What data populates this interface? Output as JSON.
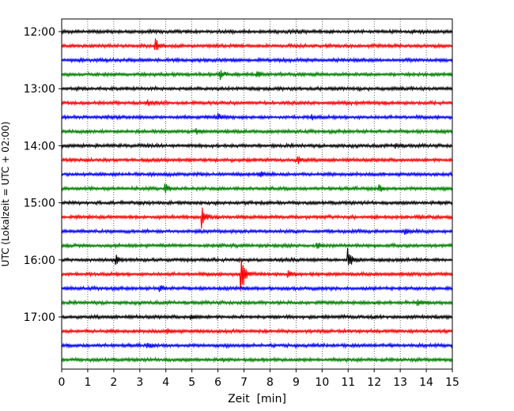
{
  "chart_data": {
    "type": "line",
    "title": "",
    "xlabel": "Zeit  [min]",
    "ylabel": "UTC (Lokalzeit = UTC + 02:00)",
    "xlim": [
      0,
      15
    ],
    "x_ticks": [
      "0",
      "1",
      "2",
      "3",
      "4",
      "5",
      "6",
      "7",
      "8",
      "9",
      "10",
      "11",
      "12",
      "13",
      "14",
      "15"
    ],
    "y_tick_labels": [
      "12:00",
      "13:00",
      "14:00",
      "15:00",
      "16:00",
      "17:00"
    ],
    "grid": "vertical dotted lines at each minute",
    "trace_colors": [
      "#000000",
      "#ff0000",
      "#0000ff",
      "#008000"
    ],
    "series": [
      {
        "start": "12:00",
        "color": "#000000",
        "events": []
      },
      {
        "start": "12:15",
        "color": "#ff0000",
        "events": [
          {
            "t": 3.6,
            "amp": 10
          }
        ]
      },
      {
        "start": "12:30",
        "color": "#0000ff",
        "events": []
      },
      {
        "start": "12:45",
        "color": "#008000",
        "events": [
          {
            "t": 6.1,
            "amp": 5
          },
          {
            "t": 7.5,
            "amp": 4
          }
        ]
      },
      {
        "start": "13:00",
        "color": "#000000",
        "events": []
      },
      {
        "start": "13:15",
        "color": "#ff0000",
        "events": [
          {
            "t": 3.3,
            "amp": 3
          }
        ]
      },
      {
        "start": "13:30",
        "color": "#0000ff",
        "events": [
          {
            "t": 6.0,
            "amp": 4
          },
          {
            "t": 9.6,
            "amp": 3
          }
        ]
      },
      {
        "start": "13:45",
        "color": "#008000",
        "events": [
          {
            "t": 5.2,
            "amp": 3
          }
        ]
      },
      {
        "start": "14:00",
        "color": "#000000",
        "events": [
          {
            "t": 12.8,
            "amp": 3
          }
        ]
      },
      {
        "start": "14:15",
        "color": "#ff0000",
        "events": [
          {
            "t": 9.1,
            "amp": 4
          }
        ]
      },
      {
        "start": "14:30",
        "color": "#0000ff",
        "events": [
          {
            "t": 7.6,
            "amp": 3
          }
        ]
      },
      {
        "start": "14:45",
        "color": "#008000",
        "events": [
          {
            "t": 4.0,
            "amp": 5
          },
          {
            "t": 12.2,
            "amp": 4
          }
        ]
      },
      {
        "start": "15:00",
        "color": "#000000",
        "events": []
      },
      {
        "start": "15:15",
        "color": "#ff0000",
        "events": [
          {
            "t": 5.4,
            "amp": 13
          }
        ]
      },
      {
        "start": "15:30",
        "color": "#0000ff",
        "events": [
          {
            "t": 13.2,
            "amp": 3
          }
        ]
      },
      {
        "start": "15:45",
        "color": "#008000",
        "events": [
          {
            "t": 9.8,
            "amp": 4
          }
        ]
      },
      {
        "start": "16:00",
        "color": "#000000",
        "events": [
          {
            "t": 2.1,
            "amp": 5
          },
          {
            "t": 11.0,
            "amp": 14
          }
        ]
      },
      {
        "start": "16:15",
        "color": "#ff0000",
        "events": [
          {
            "t": 6.9,
            "amp": 28
          },
          {
            "t": 8.7,
            "amp": 5
          }
        ]
      },
      {
        "start": "16:30",
        "color": "#0000ff",
        "events": [
          {
            "t": 3.8,
            "amp": 4
          }
        ]
      },
      {
        "start": "16:45",
        "color": "#008000",
        "events": [
          {
            "t": 13.7,
            "amp": 3
          }
        ]
      },
      {
        "start": "17:00",
        "color": "#000000",
        "events": [
          {
            "t": 5.0,
            "amp": 3
          }
        ]
      },
      {
        "start": "17:15",
        "color": "#ff0000",
        "events": [
          {
            "t": 4.1,
            "amp": 3
          }
        ]
      },
      {
        "start": "17:30",
        "color": "#0000ff",
        "events": [
          {
            "t": 3.3,
            "amp": 3
          }
        ]
      },
      {
        "start": "17:45",
        "color": "#008000",
        "events": []
      }
    ]
  }
}
